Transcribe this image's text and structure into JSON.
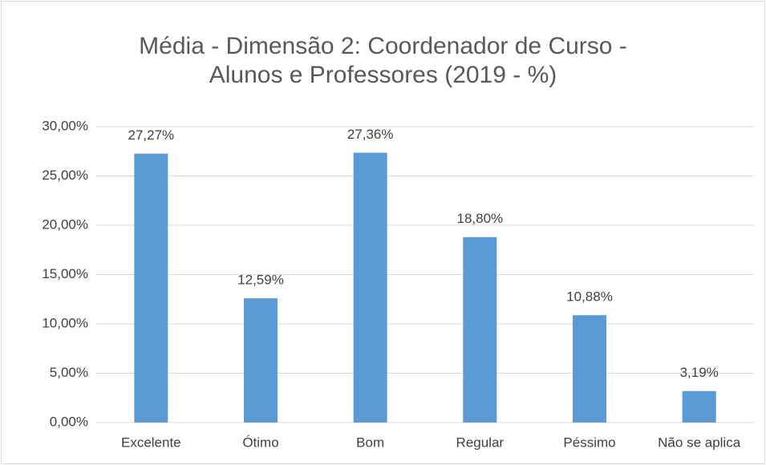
{
  "chart_data": {
    "type": "bar",
    "title": "Média - Dimensão 2: Coordenador de Curso - Alunos e Professores (2019 - %)",
    "categories": [
      "Excelente",
      "Ótimo",
      "Bom",
      "Regular",
      "Péssimo",
      "Não se aplica"
    ],
    "values": [
      27.27,
      12.59,
      27.36,
      18.8,
      10.88,
      3.19
    ],
    "value_labels": [
      "27,27%",
      "12,59%",
      "27,36%",
      "18,80%",
      "10,88%",
      "3,19%"
    ],
    "color": "#5b9bd5",
    "ylim": [
      0,
      30
    ],
    "yticks": [
      {
        "value": 0,
        "label": "0,00%"
      },
      {
        "value": 5,
        "label": "5,00%"
      },
      {
        "value": 10,
        "label": "10,00%"
      },
      {
        "value": 15,
        "label": "15,00%"
      },
      {
        "value": 20,
        "label": "20,00%"
      },
      {
        "value": 25,
        "label": "25,00%"
      },
      {
        "value": 30,
        "label": "30,00%"
      }
    ],
    "grid": true
  }
}
